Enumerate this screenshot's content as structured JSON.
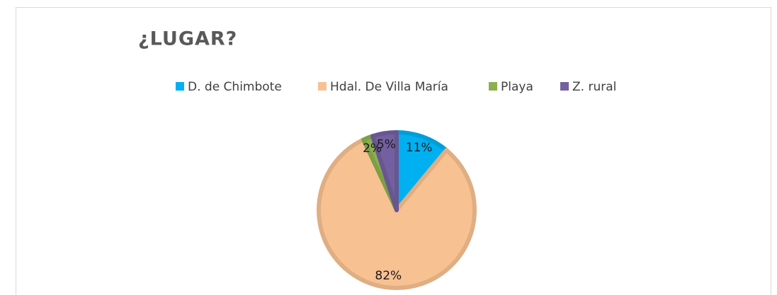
{
  "chart_data": {
    "type": "pie",
    "title": "¿LUGAR?",
    "categories": [
      "D. de Chimbote",
      "Hdal. De Villa María",
      "Playa",
      "Z. rural"
    ],
    "values": [
      11,
      82,
      2,
      5
    ],
    "value_labels": [
      "11%",
      "82%",
      "2%",
      "5%"
    ],
    "colors": [
      "#00b0f0",
      "#f8c191",
      "#8cb04f",
      "#7360a0"
    ],
    "legend": "top"
  }
}
